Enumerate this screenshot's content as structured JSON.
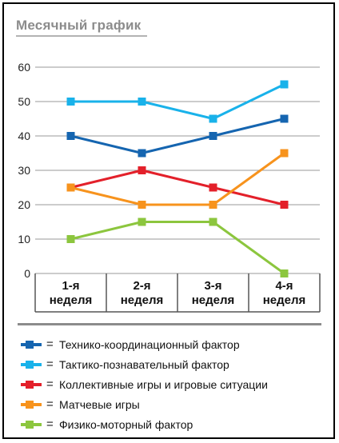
{
  "chart_data": {
    "type": "line",
    "title": "Месячный график",
    "categories": [
      "1-я неделя",
      "2-я неделя",
      "3-я неделя",
      "4-я неделя"
    ],
    "category_lines": [
      [
        "1-я",
        "неделя"
      ],
      [
        "2-я",
        "неделя"
      ],
      [
        "3-я",
        "неделя"
      ],
      [
        "4-я",
        "неделя"
      ]
    ],
    "yticks": [
      "0",
      "10",
      "20",
      "30",
      "40",
      "50",
      "60"
    ],
    "ylim": [
      0,
      60
    ],
    "grid": true,
    "legend_position": "bottom",
    "series": [
      {
        "name": "Технико-координационный фактор",
        "color": "#1565b0",
        "values": [
          40,
          35,
          40,
          45
        ]
      },
      {
        "name": "Тактико-познавательный фактор",
        "color": "#19b2ea",
        "values": [
          50,
          50,
          45,
          55
        ]
      },
      {
        "name": "Коллективные игры и игровые ситуации",
        "color": "#e3202a",
        "values": [
          25,
          30,
          25,
          20
        ]
      },
      {
        "name": "Матчевые игры",
        "color": "#f7931d",
        "values": [
          25,
          20,
          20,
          35
        ]
      },
      {
        "name": "Физико-моторный фактор",
        "color": "#8cc63e",
        "values": [
          10,
          15,
          15,
          0
        ]
      }
    ]
  },
  "legend": {
    "equals": "="
  }
}
